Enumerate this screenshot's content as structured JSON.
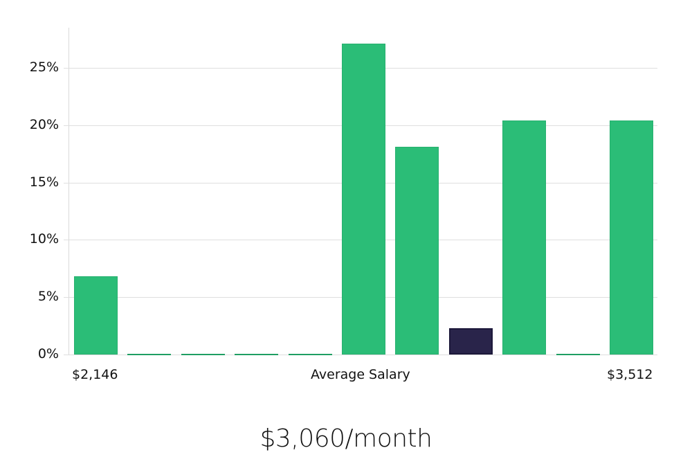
{
  "chart_data": {
    "type": "bar",
    "title": "",
    "xlabel": "Average Salary",
    "ylabel": "",
    "ylim": [
      0,
      28.5
    ],
    "yticks": [
      "0%",
      "5%",
      "10%",
      "15%",
      "20%",
      "25%"
    ],
    "ytick_values": [
      0,
      5,
      10,
      15,
      20,
      25
    ],
    "grid": true,
    "legend": null,
    "x_range_labels": {
      "min": "$2,146",
      "max": "$3,512"
    },
    "categories": [
      "bin1",
      "bin2",
      "bin3",
      "bin4",
      "bin5",
      "bin6",
      "bin7",
      "bin8",
      "bin9",
      "bin10",
      "bin11"
    ],
    "values": [
      6.8,
      0,
      0,
      0,
      0,
      27.1,
      18.1,
      2.3,
      20.4,
      0,
      20.4
    ],
    "highlighted_index": 7,
    "colors": {
      "bar": "#2bbd77",
      "highlight": "#29244a",
      "grid": "#dedede"
    },
    "annotations": [
      "$3,060/month"
    ]
  },
  "axis": {
    "x_min_label": "$2,146",
    "x_center_label": "Average Salary",
    "x_max_label": "$3,512"
  },
  "summary": {
    "salary_text": "$3,060/month"
  }
}
